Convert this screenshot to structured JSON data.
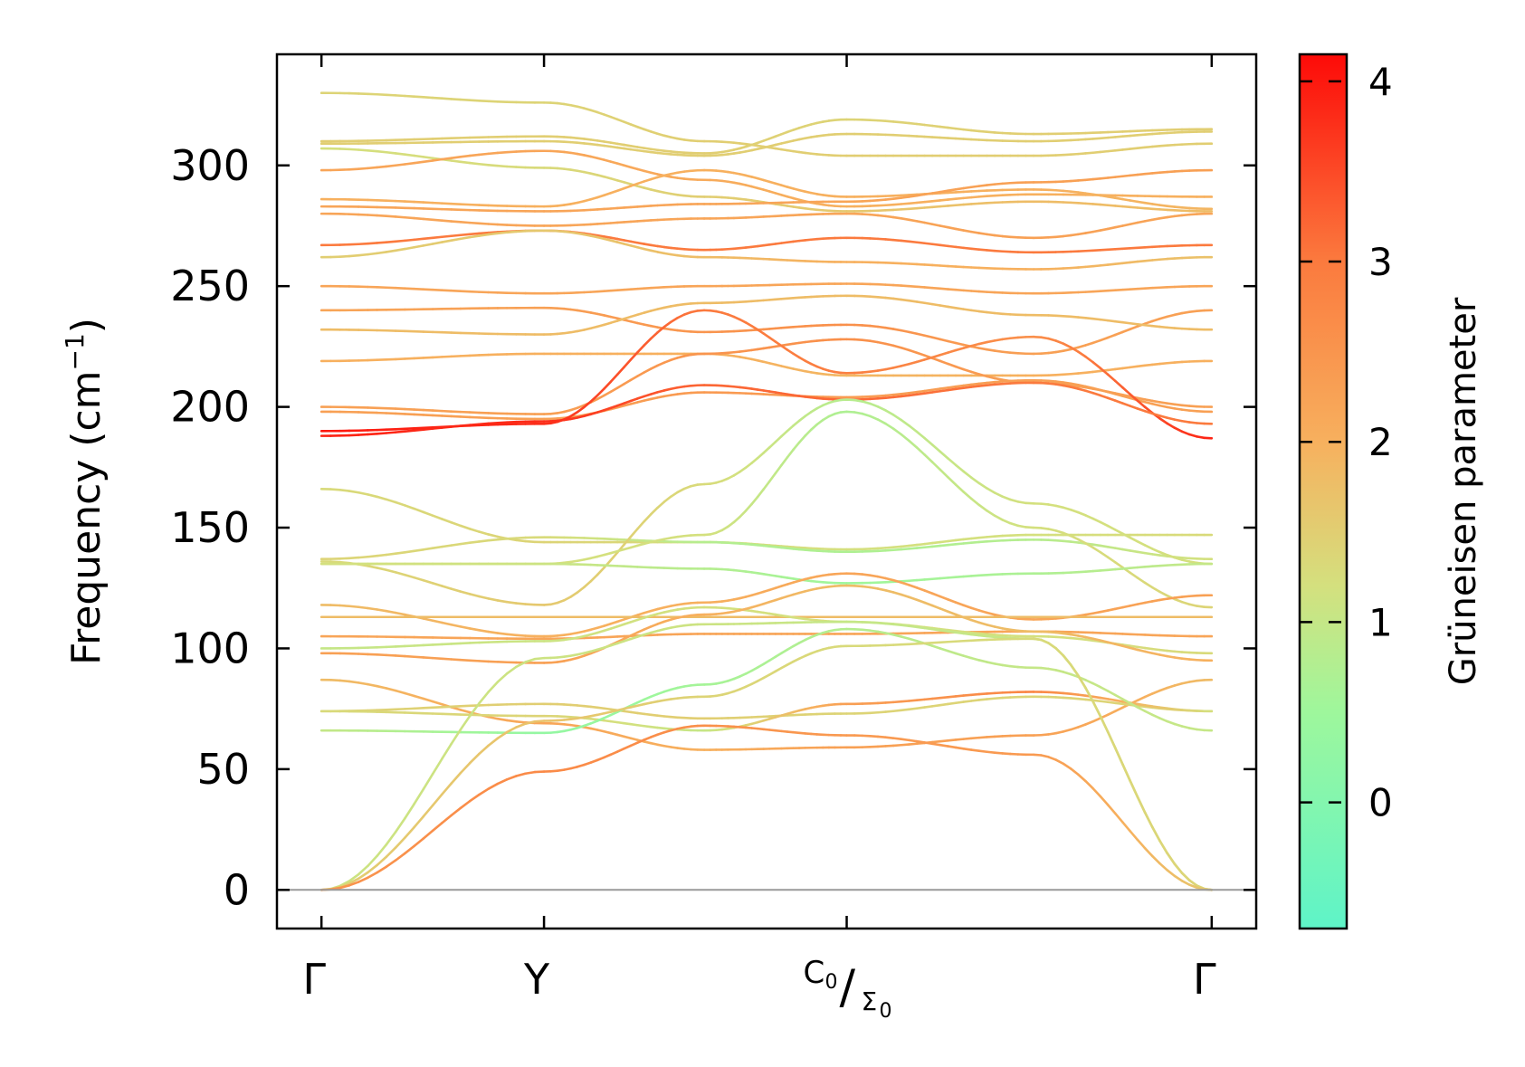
{
  "chart_data": {
    "type": "line",
    "title": "",
    "ylabel": "Frequency (cm",
    "ylabel_sup": "−1",
    "ylabel_close": ")",
    "ylim": [
      -16,
      346
    ],
    "yticks": [
      0,
      50,
      100,
      150,
      200,
      250,
      300
    ],
    "xlim": [
      -0.05,
      1.05
    ],
    "xticks": [
      {
        "x": 0.0,
        "label": "Γ"
      },
      {
        "x": 0.25,
        "label": "Y"
      },
      {
        "x": 0.59,
        "label_main": "C",
        "label_sub": "0",
        "slash": "/",
        "label2_main": "Σ",
        "label2_sub": "0"
      },
      {
        "x": 1.0,
        "label": "Γ"
      }
    ],
    "zero_line": 0,
    "colorbar": {
      "label": "Grüneisen parameter",
      "range": [
        -0.7,
        4.15
      ],
      "ticks": [
        0,
        1,
        2,
        3,
        4
      ],
      "stops": [
        {
          "v": -0.7,
          "color": "#5ef4c8"
        },
        {
          "v": 0.5,
          "color": "#9ef79c"
        },
        {
          "v": 1.2,
          "color": "#d4e07e"
        },
        {
          "v": 2.0,
          "color": "#f7b05e"
        },
        {
          "v": 3.0,
          "color": "#fb7a3e"
        },
        {
          "v": 4.15,
          "color": "#fd0a08"
        }
      ]
    },
    "series": [
      {
        "points": [
          [
            0,
            330,
            1.4
          ],
          [
            0.25,
            326,
            1.4
          ],
          [
            0.43,
            310,
            1.5
          ],
          [
            0.59,
            304,
            1.5
          ],
          [
            0.8,
            304,
            1.5
          ],
          [
            1.0,
            309,
            1.5
          ]
        ]
      },
      {
        "points": [
          [
            0,
            310,
            1.5
          ],
          [
            0.25,
            312,
            1.5
          ],
          [
            0.43,
            305,
            1.5
          ],
          [
            0.59,
            319,
            1.4
          ],
          [
            0.8,
            313,
            1.5
          ],
          [
            1.0,
            315,
            1.5
          ]
        ]
      },
      {
        "points": [
          [
            0,
            309,
            1.5
          ],
          [
            0.25,
            310,
            1.5
          ],
          [
            0.43,
            304,
            1.5
          ],
          [
            0.59,
            313,
            1.5
          ],
          [
            0.8,
            310,
            1.5
          ],
          [
            1.0,
            314,
            1.5
          ]
        ]
      },
      {
        "points": [
          [
            0,
            307,
            1.2
          ],
          [
            0.25,
            299,
            1.3
          ],
          [
            0.43,
            287,
            1.5
          ],
          [
            0.59,
            281,
            1.6
          ],
          [
            0.8,
            285,
            1.8
          ],
          [
            1.0,
            281,
            1.8
          ]
        ]
      },
      {
        "points": [
          [
            0,
            298,
            2.2
          ],
          [
            0.25,
            306,
            2.2
          ],
          [
            0.43,
            294,
            2.1
          ],
          [
            0.59,
            283,
            2.0
          ],
          [
            0.8,
            288,
            2.0
          ],
          [
            1.0,
            287,
            2.0
          ]
        ]
      },
      {
        "points": [
          [
            0,
            286,
            2.0
          ],
          [
            0.25,
            283,
            2.0
          ],
          [
            0.43,
            298,
            2.0
          ],
          [
            0.59,
            287,
            2.0
          ],
          [
            0.8,
            290,
            2.0
          ],
          [
            1.0,
            282,
            1.9
          ]
        ]
      },
      {
        "points": [
          [
            0,
            283,
            2.2
          ],
          [
            0.25,
            281,
            2.2
          ],
          [
            0.43,
            284,
            2.2
          ],
          [
            0.59,
            285,
            2.2
          ],
          [
            0.8,
            293,
            2.3
          ],
          [
            1.0,
            298,
            2.3
          ]
        ]
      },
      {
        "points": [
          [
            0,
            280,
            2.2
          ],
          [
            0.25,
            275,
            2.2
          ],
          [
            0.43,
            278,
            2.2
          ],
          [
            0.59,
            280,
            2.2
          ],
          [
            0.8,
            270,
            2.3
          ],
          [
            1.0,
            280,
            2.2
          ]
        ]
      },
      {
        "points": [
          [
            0,
            267,
            3.0
          ],
          [
            0.25,
            273,
            3.0
          ],
          [
            0.43,
            265,
            3.0
          ],
          [
            0.59,
            270,
            3.0
          ],
          [
            0.8,
            264,
            3.0
          ],
          [
            1.0,
            267,
            3.0
          ]
        ]
      },
      {
        "points": [
          [
            0,
            262,
            1.5
          ],
          [
            0.25,
            273,
            1.6
          ],
          [
            0.43,
            262,
            1.8
          ],
          [
            0.59,
            260,
            2.0
          ],
          [
            0.8,
            257,
            2.0
          ],
          [
            1.0,
            262,
            1.7
          ]
        ]
      },
      {
        "points": [
          [
            0,
            250,
            2.2
          ],
          [
            0.25,
            247,
            2.2
          ],
          [
            0.43,
            250,
            2.2
          ],
          [
            0.59,
            251,
            2.2
          ],
          [
            0.8,
            247,
            2.2
          ],
          [
            1.0,
            250,
            2.2
          ]
        ]
      },
      {
        "points": [
          [
            0,
            240,
            2.2
          ],
          [
            0.25,
            241,
            2.3
          ],
          [
            0.43,
            231,
            2.5
          ],
          [
            0.59,
            234,
            2.6
          ],
          [
            0.8,
            222,
            2.3
          ],
          [
            1.0,
            240,
            2.3
          ]
        ]
      },
      {
        "points": [
          [
            0,
            232,
            1.8
          ],
          [
            0.25,
            230,
            1.8
          ],
          [
            0.43,
            243,
            1.8
          ],
          [
            0.59,
            246,
            1.8
          ],
          [
            0.8,
            238,
            1.8
          ],
          [
            1.0,
            232,
            1.8
          ]
        ]
      },
      {
        "points": [
          [
            0,
            219,
            2.0
          ],
          [
            0.25,
            222,
            2.0
          ],
          [
            0.43,
            222,
            2.0
          ],
          [
            0.59,
            213,
            1.9
          ],
          [
            0.8,
            213,
            2.0
          ],
          [
            1.0,
            219,
            2.0
          ]
        ]
      },
      {
        "points": [
          [
            0,
            200,
            2.3
          ],
          [
            0.25,
            197,
            2.3
          ],
          [
            0.43,
            222,
            2.5
          ],
          [
            0.59,
            228,
            2.6
          ],
          [
            0.8,
            210,
            2.3
          ],
          [
            1.0,
            200,
            2.3
          ]
        ]
      },
      {
        "points": [
          [
            0,
            198,
            2.3
          ],
          [
            0.25,
            195,
            2.3
          ],
          [
            0.43,
            206,
            2.4
          ],
          [
            0.59,
            204,
            2.4
          ],
          [
            0.8,
            211,
            2.3
          ],
          [
            1.0,
            198,
            2.3
          ]
        ]
      },
      {
        "points": [
          [
            0,
            190,
            4.0
          ],
          [
            0.25,
            193,
            3.8
          ],
          [
            0.43,
            240,
            3.0
          ],
          [
            0.59,
            214,
            2.9
          ],
          [
            0.8,
            229,
            2.6
          ],
          [
            1.0,
            187,
            3.9
          ]
        ]
      },
      {
        "points": [
          [
            0,
            188,
            3.9
          ],
          [
            0.25,
            194,
            3.8
          ],
          [
            0.43,
            209,
            3.2
          ],
          [
            0.59,
            203,
            3.2
          ],
          [
            0.8,
            210,
            3.0
          ],
          [
            1.0,
            193,
            3.0
          ]
        ]
      },
      {
        "points": [
          [
            0,
            166,
            1.3
          ],
          [
            0.25,
            144,
            1.4
          ],
          [
            0.43,
            144,
            1.3
          ],
          [
            0.59,
            141,
            1.2
          ],
          [
            0.8,
            147,
            1.2
          ],
          [
            1.0,
            147,
            1.3
          ]
        ]
      },
      {
        "points": [
          [
            0,
            137,
            1.4
          ],
          [
            0.25,
            146,
            1.3
          ],
          [
            0.43,
            144,
            0.8
          ],
          [
            0.59,
            140,
            0.7
          ],
          [
            0.8,
            145,
            0.8
          ],
          [
            1.0,
            137,
            1.2
          ]
        ]
      },
      {
        "points": [
          [
            0,
            136,
            1.3
          ],
          [
            0.25,
            118,
            1.6
          ],
          [
            0.43,
            168,
            1.3
          ],
          [
            0.59,
            203,
            0.8
          ],
          [
            0.8,
            160,
            1.2
          ],
          [
            1.0,
            135,
            1.2
          ]
        ]
      },
      {
        "points": [
          [
            0,
            135,
            1.2
          ],
          [
            0.25,
            135,
            1.2
          ],
          [
            0.43,
            147,
            1.2
          ],
          [
            0.59,
            198,
            0.7
          ],
          [
            0.8,
            150,
            1.2
          ],
          [
            1.0,
            117,
            1.4
          ]
        ]
      },
      {
        "points": [
          [
            0,
            135,
            1.2
          ],
          [
            0.25,
            135,
            1.1
          ],
          [
            0.43,
            133,
            0.8
          ],
          [
            0.59,
            127,
            0.5
          ],
          [
            0.8,
            131,
            0.7
          ],
          [
            1.0,
            135,
            1.0
          ]
        ]
      },
      {
        "points": [
          [
            0,
            118,
            1.8
          ],
          [
            0.25,
            105,
            2.0
          ],
          [
            0.43,
            119,
            2.0
          ],
          [
            0.59,
            131,
            2.2
          ],
          [
            0.8,
            112,
            2.2
          ],
          [
            1.0,
            122,
            2.3
          ]
        ]
      },
      {
        "points": [
          [
            0,
            113,
            1.8
          ],
          [
            0.25,
            113,
            1.8
          ],
          [
            0.43,
            113,
            1.8
          ],
          [
            0.59,
            113,
            1.8
          ],
          [
            0.8,
            113,
            1.8
          ],
          [
            1.0,
            113,
            1.8
          ]
        ]
      },
      {
        "points": [
          [
            0,
            105,
            2.2
          ],
          [
            0.25,
            104,
            2.2
          ],
          [
            0.43,
            106,
            2.2
          ],
          [
            0.59,
            106,
            2.2
          ],
          [
            0.8,
            107,
            2.2
          ],
          [
            1.0,
            105,
            2.2
          ]
        ]
      },
      {
        "points": [
          [
            0,
            100,
            1.0
          ],
          [
            0.25,
            103,
            1.1
          ],
          [
            0.43,
            117,
            1.2
          ],
          [
            0.59,
            111,
            1.2
          ],
          [
            0.8,
            105,
            1.2
          ],
          [
            1.0,
            98,
            1.3
          ]
        ]
      },
      {
        "points": [
          [
            0,
            98,
            2.3
          ],
          [
            0.25,
            94,
            2.3
          ],
          [
            0.43,
            114,
            2.0
          ],
          [
            0.59,
            126,
            1.8
          ],
          [
            0.8,
            107,
            1.8
          ],
          [
            1.0,
            95,
            2.0
          ]
        ]
      },
      {
        "points": [
          [
            0,
            87,
            1.8
          ],
          [
            0.25,
            69,
            2.2
          ],
          [
            0.43,
            58,
            2.0
          ],
          [
            0.59,
            59,
            2.3
          ],
          [
            0.8,
            64,
            2.3
          ],
          [
            1.0,
            87,
            1.8
          ]
        ]
      },
      {
        "points": [
          [
            0,
            74,
            1.4
          ],
          [
            0.25,
            77,
            1.5
          ],
          [
            0.43,
            71,
            1.5
          ],
          [
            0.59,
            73,
            1.4
          ],
          [
            0.8,
            80,
            1.4
          ],
          [
            1.0,
            74,
            1.4
          ]
        ]
      },
      {
        "points": [
          [
            0,
            74,
            1.3
          ],
          [
            0.25,
            72,
            1.4
          ],
          [
            0.43,
            66,
            1.0
          ],
          [
            0.59,
            77,
            2.3
          ],
          [
            0.8,
            82,
            2.8
          ],
          [
            1.0,
            74,
            1.2
          ]
        ]
      },
      {
        "points": [
          [
            0,
            66,
            1.0
          ],
          [
            0.25,
            65,
            0.3
          ],
          [
            0.43,
            85,
            0.6
          ],
          [
            0.59,
            108,
            0.8
          ],
          [
            0.8,
            92,
            1.0
          ],
          [
            1.0,
            66,
            1.0
          ]
        ]
      },
      {
        "points": [
          [
            0,
            0,
            1.1
          ],
          [
            0.25,
            96,
            1.1
          ],
          [
            0.43,
            110,
            1.1
          ],
          [
            0.59,
            111,
            1.0
          ],
          [
            0.8,
            104,
            1.0
          ],
          [
            1.0,
            0,
            1.2
          ]
        ]
      },
      {
        "points": [
          [
            0,
            0,
            1.5
          ],
          [
            0.25,
            70,
            1.7
          ],
          [
            0.43,
            80,
            1.4
          ],
          [
            0.59,
            101,
            1.3
          ],
          [
            0.8,
            104,
            1.3
          ],
          [
            1.0,
            0,
            1.4
          ]
        ]
      },
      {
        "points": [
          [
            0,
            0,
            2.5
          ],
          [
            0.25,
            49,
            2.7
          ],
          [
            0.43,
            68,
            2.6
          ],
          [
            0.59,
            64,
            2.4
          ],
          [
            0.8,
            56,
            2.4
          ],
          [
            1.0,
            0,
            1.6
          ]
        ]
      }
    ]
  }
}
